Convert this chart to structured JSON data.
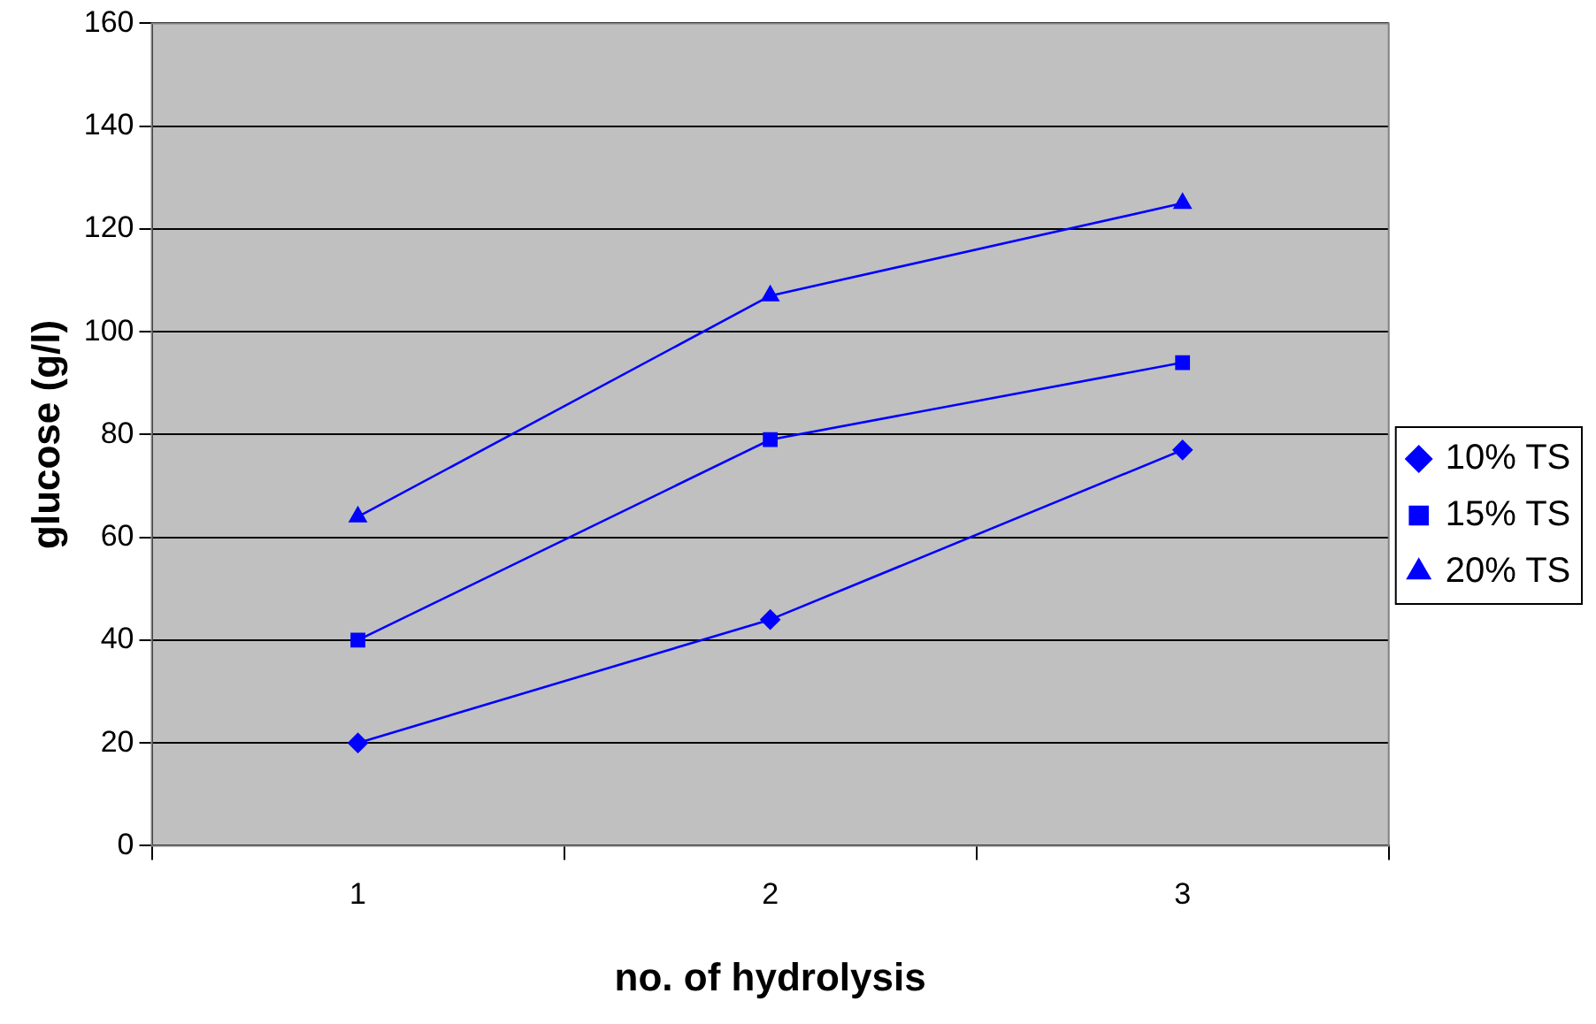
{
  "chart_data": {
    "type": "line",
    "xlabel": "no. of hydrolysis",
    "ylabel": "glucose (g/l)",
    "categories": [
      "1",
      "2",
      "3"
    ],
    "series": [
      {
        "name": "10% TS",
        "color": "#0000ff",
        "marker": "diamond",
        "values": [
          20,
          44,
          77
        ]
      },
      {
        "name": "15% TS",
        "color": "#0000ff",
        "marker": "square",
        "values": [
          40,
          79,
          94
        ]
      },
      {
        "name": "20% TS",
        "color": "#0000ff",
        "marker": "triangle",
        "values": [
          64,
          107,
          125
        ]
      }
    ],
    "ylim": [
      0,
      160
    ],
    "yticks": [
      0,
      20,
      40,
      60,
      80,
      100,
      120,
      140,
      160
    ],
    "grid": "y",
    "legend": "right"
  }
}
